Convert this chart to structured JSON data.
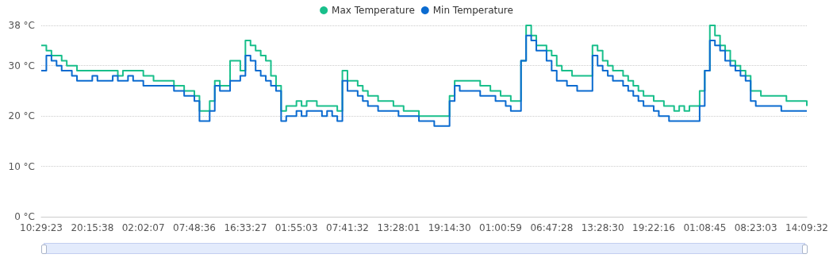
{
  "chart_data": {
    "type": "step",
    "categories": [
      "10:29:23",
      null,
      null,
      null,
      null,
      null,
      null,
      null,
      null,
      null,
      "20:15:38",
      null,
      null,
      null,
      null,
      null,
      null,
      null,
      null,
      null,
      "02:02:07",
      null,
      null,
      null,
      null,
      null,
      null,
      null,
      null,
      null,
      "07:48:36",
      null,
      null,
      null,
      null,
      null,
      null,
      null,
      null,
      null,
      "16:33:27",
      null,
      null,
      null,
      null,
      null,
      null,
      null,
      null,
      null,
      "01:55:03",
      null,
      null,
      null,
      null,
      null,
      null,
      null,
      null,
      null,
      "07:41:32",
      null,
      null,
      null,
      null,
      null,
      null,
      null,
      null,
      null,
      "13:28:01",
      null,
      null,
      null,
      null,
      null,
      null,
      null,
      null,
      null,
      "19:14:30",
      null,
      null,
      null,
      null,
      null,
      null,
      null,
      null,
      null,
      "01:00:59",
      null,
      null,
      null,
      null,
      null,
      null,
      null,
      null,
      null,
      "06:47:28",
      null,
      null,
      null,
      null,
      null,
      null,
      null,
      null,
      null,
      "13:28:30",
      null,
      null,
      null,
      null,
      null,
      null,
      null,
      null,
      null,
      "19:22:16",
      null,
      null,
      null,
      null,
      null,
      null,
      null,
      null,
      null,
      "01:08:45",
      null,
      null,
      null,
      null,
      null,
      null,
      null,
      null,
      null,
      "08:23:03",
      null,
      null,
      null,
      null,
      null,
      null,
      null,
      null,
      null,
      "14:09:32"
    ],
    "series": [
      {
        "name": "Max Temperature",
        "color": "#19bf8b",
        "values": [
          34,
          33,
          32,
          32,
          31,
          30,
          30,
          29,
          29,
          29,
          29,
          29,
          29,
          29,
          29,
          28,
          29,
          29,
          29,
          29,
          28,
          28,
          27,
          27,
          27,
          27,
          26,
          26,
          25,
          25,
          24,
          21,
          21,
          23,
          27,
          26,
          26,
          31,
          31,
          29,
          35,
          34,
          33,
          32,
          31,
          28,
          26,
          21,
          22,
          22,
          23,
          22,
          23,
          23,
          22,
          22,
          22,
          22,
          21,
          29,
          27,
          27,
          26,
          25,
          24,
          24,
          23,
          23,
          23,
          22,
          22,
          21,
          21,
          21,
          20,
          20,
          20,
          20,
          20,
          20,
          24,
          27,
          27,
          27,
          27,
          27,
          26,
          26,
          25,
          25,
          24,
          24,
          23,
          23,
          31,
          38,
          36,
          34,
          34,
          33,
          32,
          30,
          29,
          29,
          28,
          28,
          28,
          28,
          34,
          33,
          31,
          30,
          29,
          29,
          28,
          27,
          26,
          25,
          24,
          24,
          23,
          23,
          22,
          22,
          21,
          22,
          21,
          22,
          22,
          25,
          29,
          38,
          36,
          34,
          33,
          31,
          30,
          29,
          28,
          25,
          25,
          24,
          24,
          24,
          24,
          24,
          23,
          23,
          23,
          23,
          22
        ]
      },
      {
        "name": "Min Temperature",
        "color": "#0b6bd0",
        "values": [
          29,
          32,
          31,
          30,
          29,
          29,
          28,
          27,
          27,
          27,
          28,
          27,
          27,
          27,
          28,
          27,
          27,
          28,
          27,
          27,
          26,
          26,
          26,
          26,
          26,
          26,
          25,
          25,
          24,
          24,
          23,
          19,
          19,
          21,
          26,
          25,
          25,
          27,
          27,
          28,
          32,
          31,
          29,
          28,
          27,
          26,
          25,
          19,
          20,
          20,
          21,
          20,
          21,
          21,
          21,
          20,
          21,
          20,
          19,
          27,
          25,
          25,
          24,
          23,
          22,
          22,
          21,
          21,
          21,
          21,
          20,
          20,
          20,
          20,
          19,
          19,
          19,
          18,
          18,
          18,
          23,
          26,
          25,
          25,
          25,
          25,
          24,
          24,
          24,
          23,
          23,
          22,
          21,
          21,
          31,
          36,
          35,
          33,
          33,
          31,
          29,
          27,
          27,
          26,
          26,
          25,
          25,
          25,
          32,
          30,
          29,
          28,
          27,
          27,
          26,
          25,
          24,
          23,
          22,
          22,
          21,
          20,
          20,
          19,
          19,
          19,
          19,
          19,
          19,
          22,
          29,
          35,
          34,
          33,
          31,
          30,
          29,
          28,
          27,
          23,
          22,
          22,
          22,
          22,
          22,
          21,
          21,
          21,
          21,
          21,
          21
        ]
      }
    ],
    "ylim": [
      0,
      38
    ],
    "yticks": [
      {
        "value": 0,
        "label": "0 °C"
      },
      {
        "value": 10,
        "label": "10 °C"
      },
      {
        "value": 20,
        "label": "20 °C"
      },
      {
        "value": 30,
        "label": "30 °C"
      },
      {
        "value": 38,
        "label": "38 °C"
      }
    ],
    "grid": "y",
    "legend": "top",
    "marker": "none",
    "line_style": "solid"
  }
}
